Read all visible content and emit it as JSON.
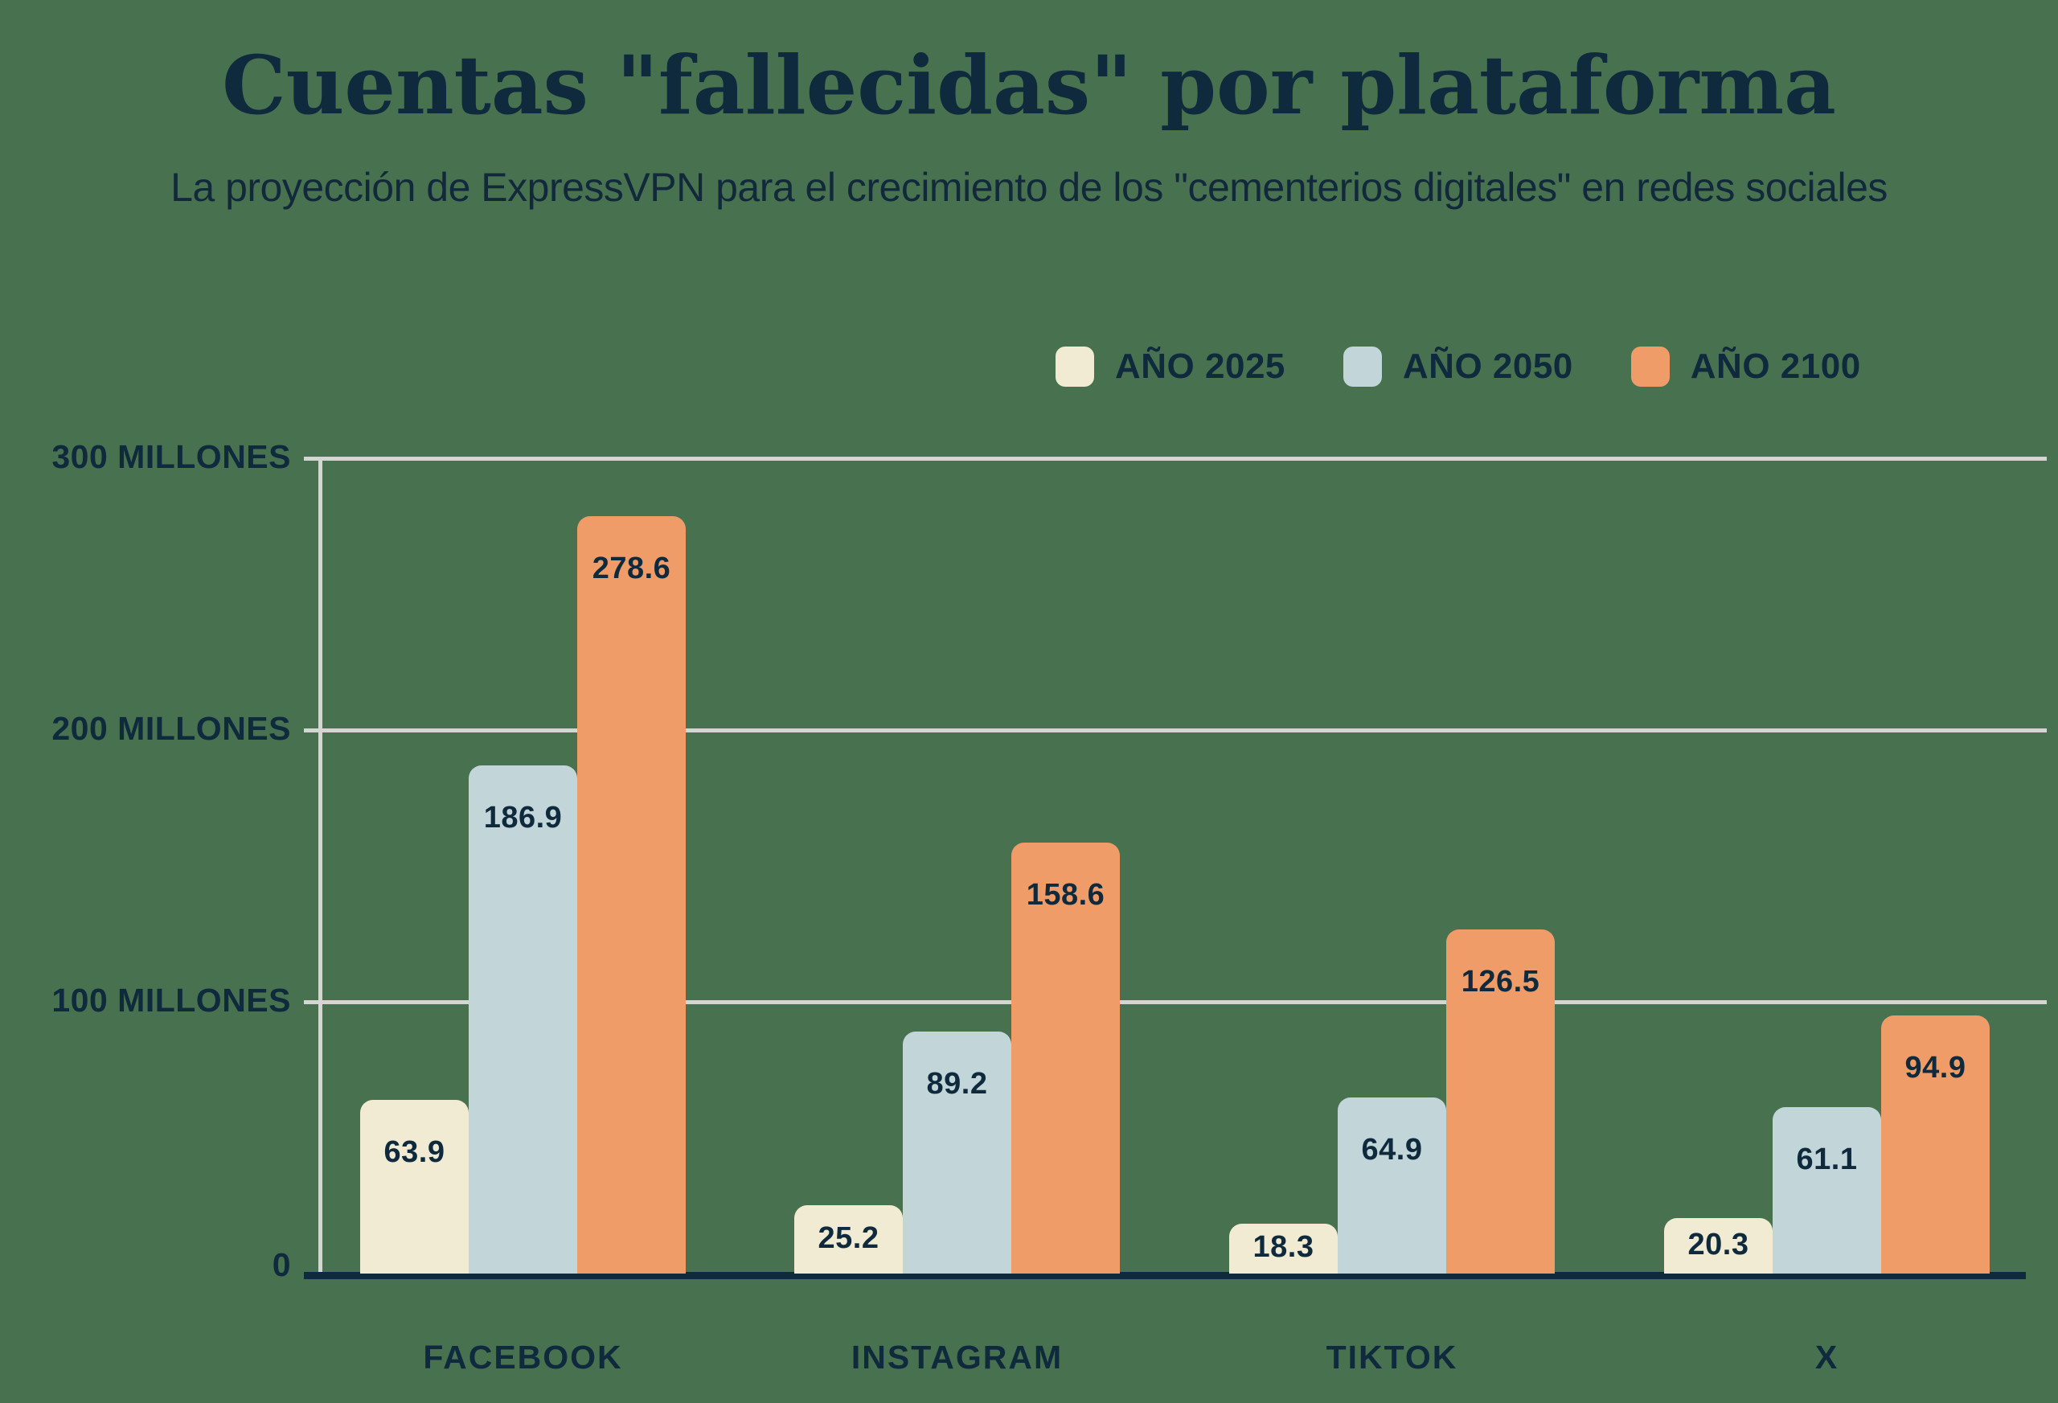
{
  "title": "Cuentas \"fallecidas\" por plataforma",
  "subtitle": "La proyección de ExpressVPN para el crecimiento de los \"cementerios digitales\" en redes sociales",
  "colors": {
    "background": "#48724F",
    "text_navy": "#0F2A3C",
    "gridline": "#D2D7D3",
    "serie_2025": "#F0EBD2",
    "serie_2050": "#C2D6D9",
    "serie_2100": "#F09C69"
  },
  "chart_data": {
    "type": "bar",
    "title": "Cuentas \"fallecidas\" por plataforma",
    "subtitle": "La proyección de ExpressVPN para el crecimiento de los \"cementerios digitales\" en redes sociales",
    "categories": [
      "FACEBOOK",
      "INSTAGRAM",
      "TIKTOK",
      "X"
    ],
    "series": [
      {
        "name": "AÑO 2025",
        "color": "#F0EBD2",
        "values": [
          63.9,
          25.2,
          18.3,
          20.3
        ]
      },
      {
        "name": "AÑO 2050",
        "color": "#C2D6D9",
        "values": [
          186.9,
          89.2,
          64.9,
          61.1
        ]
      },
      {
        "name": "AÑO 2100",
        "color": "#F09C69",
        "values": [
          278.6,
          158.6,
          126.5,
          94.9
        ]
      }
    ],
    "unit": "millones",
    "ylim": [
      0,
      300
    ],
    "grid": true,
    "legend_position": "top-right",
    "y_axis": {
      "ticks": [
        {
          "value": 300,
          "label": "300 MILLONES"
        },
        {
          "value": 200,
          "label": "200 MILLONES"
        },
        {
          "value": 100,
          "label": "100 MILLONES"
        },
        {
          "value": 0,
          "label": "0"
        }
      ]
    }
  }
}
